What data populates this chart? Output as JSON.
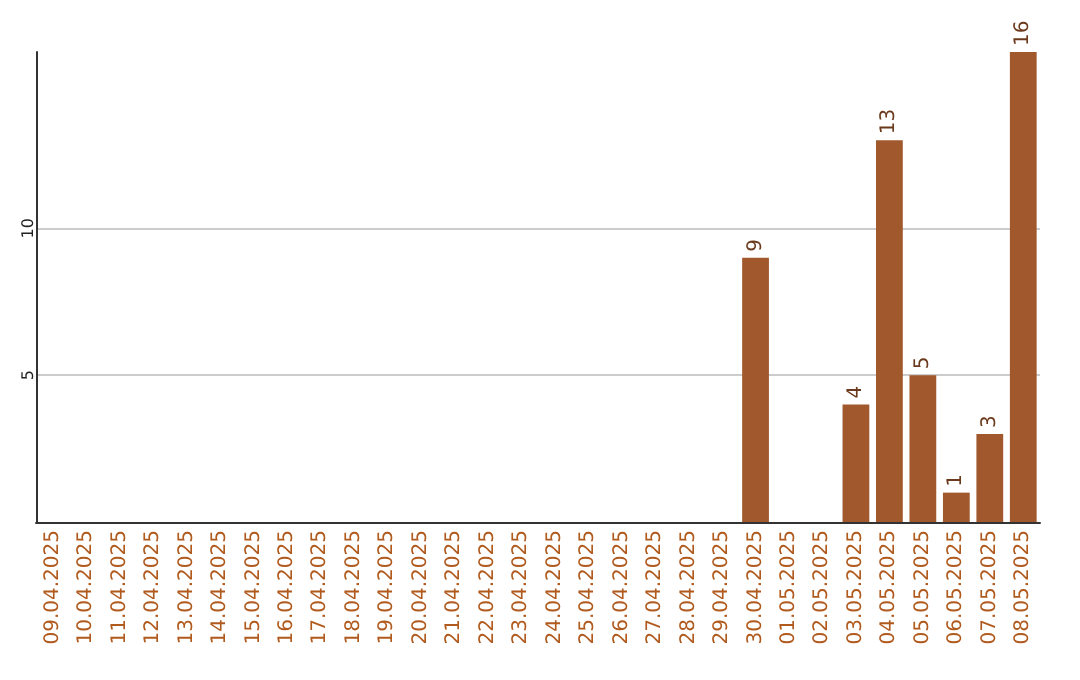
{
  "chart_data": {
    "type": "bar",
    "categories": [
      "09.04.2025",
      "10.04.2025",
      "11.04.2025",
      "12.04.2025",
      "13.04.2025",
      "14.04.2025",
      "15.04.2025",
      "16.04.2025",
      "17.04.2025",
      "18.04.2025",
      "19.04.2025",
      "20.04.2025",
      "21.04.2025",
      "22.04.2025",
      "23.04.2025",
      "24.04.2025",
      "25.04.2025",
      "26.04.2025",
      "27.04.2025",
      "28.04.2025",
      "29.04.2025",
      "30.04.2025",
      "01.05.2025",
      "02.05.2025",
      "03.05.2025",
      "04.05.2025",
      "05.05.2025",
      "06.05.2025",
      "07.05.2025",
      "08.05.2025"
    ],
    "values": [
      null,
      null,
      null,
      null,
      null,
      null,
      null,
      null,
      null,
      null,
      null,
      null,
      null,
      null,
      null,
      null,
      null,
      null,
      null,
      null,
      null,
      9,
      null,
      null,
      4,
      13,
      5,
      1,
      3,
      16
    ],
    "color": "#a0582c",
    "ylim": [
      0,
      16
    ],
    "yticks": [
      5,
      10
    ],
    "grid": "y",
    "data_labels": true
  }
}
